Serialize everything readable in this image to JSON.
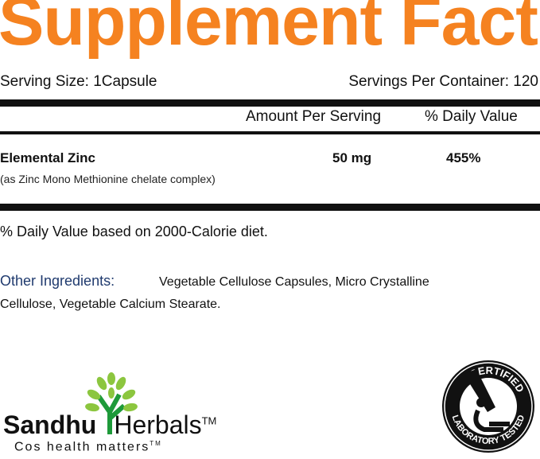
{
  "title": "Supplement Facts",
  "serving_size": "Serving Size: 1Capsule",
  "servings_per_container": "Servings Per Container: 120",
  "headers": {
    "amount": "Amount Per Serving",
    "dv": "% Daily Value"
  },
  "nutrients": [
    {
      "name": "Elemental Zinc",
      "note": "(as Zinc Mono Methionine chelate complex)",
      "amount": "50 mg",
      "dv": "455%"
    }
  ],
  "footnote": "% Daily Value based on 2000-Calorie diet.",
  "other_ingredients": {
    "label": "Other Ingredients:",
    "line1": "Vegetable Cellulose Capsules, Micro Crystalline",
    "line2": "Cellulose, Vegetable Calcium Stearate."
  },
  "brand": {
    "part1": "Sandhu",
    "part2": "Herbals",
    "tm": "TM",
    "tagline": "Cos health matters",
    "tagline_tm": "TM"
  },
  "seal": {
    "top": "CERTIFIED",
    "bottom": "LABORATORY TESTED"
  },
  "colors": {
    "title": "#f58220",
    "ingredients_label": "#1f3a6e",
    "leaf": "#8cc63f",
    "trunk": "#1e9a3a"
  }
}
